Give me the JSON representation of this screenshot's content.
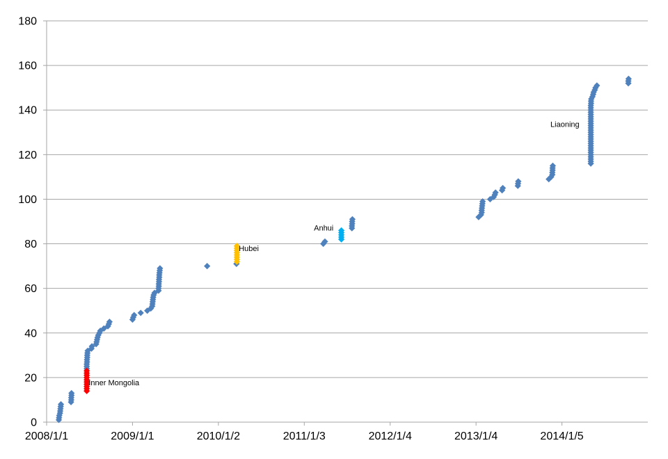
{
  "chart_data": {
    "type": "scatter",
    "title": "",
    "xlabel": "",
    "ylabel": "",
    "x_ticks": [
      "2008/1/1",
      "2009/1/1",
      "2010/1/2",
      "2011/1/3",
      "2012/1/4",
      "2013/1/4",
      "2014/1/5"
    ],
    "y_ticks": [
      0,
      20,
      40,
      60,
      80,
      100,
      120,
      140,
      160,
      180
    ],
    "xlim": [
      "2008-01-01",
      "2015-01-06"
    ],
    "ylim": [
      0,
      180
    ],
    "grid": "horizontal",
    "legend": "none",
    "colors": {
      "default": "#4F81BD",
      "inner_mongolia": "#FF0000",
      "hubei": "#FFC000",
      "anhui": "#00B0F0",
      "gridline": "#A6A6A6"
    },
    "series": [
      {
        "color_key": "default",
        "points": [
          [
            "2008-02-22",
            1
          ],
          [
            "2008-02-23",
            2
          ],
          [
            "2008-02-24",
            3
          ],
          [
            "2008-02-27",
            4
          ],
          [
            "2008-02-28",
            5
          ],
          [
            "2008-02-29",
            6
          ],
          [
            "2008-03-01",
            7
          ],
          [
            "2008-03-02",
            8
          ],
          [
            "2008-04-14",
            9
          ],
          [
            "2008-04-15",
            10
          ],
          [
            "2008-04-15",
            11
          ],
          [
            "2008-04-16",
            12
          ],
          [
            "2008-04-16",
            13
          ],
          [
            "2008-06-20",
            24
          ],
          [
            "2008-06-20",
            25
          ],
          [
            "2008-06-20",
            26
          ],
          [
            "2008-06-21",
            27
          ],
          [
            "2008-06-21",
            28
          ],
          [
            "2008-06-22",
            29
          ],
          [
            "2008-06-22",
            30
          ],
          [
            "2008-06-23",
            31
          ],
          [
            "2008-06-24",
            32
          ],
          [
            "2008-07-10",
            33
          ],
          [
            "2008-07-12",
            34
          ],
          [
            "2008-07-30",
            35
          ],
          [
            "2008-08-01",
            36
          ],
          [
            "2008-08-03",
            37
          ],
          [
            "2008-08-05",
            38
          ],
          [
            "2008-08-08",
            39
          ],
          [
            "2008-08-13",
            40
          ],
          [
            "2008-08-17",
            41
          ],
          [
            "2008-09-01",
            42
          ],
          [
            "2008-09-18",
            43
          ],
          [
            "2008-09-22",
            44
          ],
          [
            "2008-09-25",
            45
          ],
          [
            "2009-01-01",
            46
          ],
          [
            "2009-01-04",
            47
          ],
          [
            "2009-01-08",
            48
          ],
          [
            "2009-02-05",
            49
          ],
          [
            "2009-03-05",
            50
          ],
          [
            "2009-03-20",
            51
          ],
          [
            "2009-03-26",
            52
          ],
          [
            "2009-03-27",
            53
          ],
          [
            "2009-03-28",
            54
          ],
          [
            "2009-03-29",
            55
          ],
          [
            "2009-03-30",
            56
          ],
          [
            "2009-04-01",
            57
          ],
          [
            "2009-04-05",
            58
          ],
          [
            "2009-04-22",
            59
          ],
          [
            "2009-04-22",
            60
          ],
          [
            "2009-04-23",
            61
          ],
          [
            "2009-04-23",
            62
          ],
          [
            "2009-04-24",
            63
          ],
          [
            "2009-04-24",
            64
          ],
          [
            "2009-04-25",
            65
          ],
          [
            "2009-04-25",
            66
          ],
          [
            "2009-04-26",
            67
          ],
          [
            "2009-04-27",
            68
          ],
          [
            "2009-04-28",
            69
          ],
          [
            "2009-11-15",
            70
          ],
          [
            "2010-03-20",
            71
          ],
          [
            "2011-03-25",
            80
          ],
          [
            "2011-04-01",
            81
          ],
          [
            "2011-07-25",
            87
          ],
          [
            "2011-07-25",
            88
          ],
          [
            "2011-07-26",
            89
          ],
          [
            "2011-07-26",
            90
          ],
          [
            "2011-07-27",
            91
          ],
          [
            "2013-01-15",
            92
          ],
          [
            "2013-01-25",
            93
          ],
          [
            "2013-01-28",
            94
          ],
          [
            "2013-01-28",
            95
          ],
          [
            "2013-01-29",
            96
          ],
          [
            "2013-01-30",
            97
          ],
          [
            "2013-01-31",
            98
          ],
          [
            "2013-02-01",
            99
          ],
          [
            "2013-03-05",
            100
          ],
          [
            "2013-03-20",
            101
          ],
          [
            "2013-03-25",
            102
          ],
          [
            "2013-03-28",
            103
          ],
          [
            "2013-04-25",
            104
          ],
          [
            "2013-04-28",
            105
          ],
          [
            "2013-07-01",
            106
          ],
          [
            "2013-07-02",
            107
          ],
          [
            "2013-07-03",
            108
          ],
          [
            "2013-11-10",
            109
          ],
          [
            "2013-11-20",
            110
          ],
          [
            "2013-11-25",
            111
          ],
          [
            "2013-11-25",
            112
          ],
          [
            "2013-11-26",
            113
          ],
          [
            "2013-11-26",
            114
          ],
          [
            "2013-11-27",
            115
          ],
          [
            "2014-05-08",
            116
          ],
          [
            "2014-05-08",
            117
          ],
          [
            "2014-05-08",
            118
          ],
          [
            "2014-05-08",
            119
          ],
          [
            "2014-05-08",
            120
          ],
          [
            "2014-05-08",
            121
          ],
          [
            "2014-05-08",
            122
          ],
          [
            "2014-05-08",
            123
          ],
          [
            "2014-05-08",
            124
          ],
          [
            "2014-05-08",
            125
          ],
          [
            "2014-05-08",
            126
          ],
          [
            "2014-05-08",
            127
          ],
          [
            "2014-05-08",
            128
          ],
          [
            "2014-05-08",
            129
          ],
          [
            "2014-05-08",
            130
          ],
          [
            "2014-05-08",
            131
          ],
          [
            "2014-05-08",
            132
          ],
          [
            "2014-05-08",
            133
          ],
          [
            "2014-05-08",
            134
          ],
          [
            "2014-05-08",
            135
          ],
          [
            "2014-05-08",
            136
          ],
          [
            "2014-05-08",
            137
          ],
          [
            "2014-05-08",
            138
          ],
          [
            "2014-05-08",
            139
          ],
          [
            "2014-05-08",
            140
          ],
          [
            "2014-05-08",
            141
          ],
          [
            "2014-05-08",
            142
          ],
          [
            "2014-05-09",
            143
          ],
          [
            "2014-05-09",
            144
          ],
          [
            "2014-05-10",
            145
          ],
          [
            "2014-05-15",
            146
          ],
          [
            "2014-05-18",
            147
          ],
          [
            "2014-05-20",
            148
          ],
          [
            "2014-05-25",
            149
          ],
          [
            "2014-05-28",
            150
          ],
          [
            "2014-06-03",
            151
          ],
          [
            "2014-10-15",
            152
          ],
          [
            "2014-10-15",
            153
          ],
          [
            "2014-10-16",
            154
          ]
        ]
      },
      {
        "color_key": "inner_mongolia",
        "points": [
          [
            "2008-06-20",
            14
          ],
          [
            "2008-06-20",
            15
          ],
          [
            "2008-06-20",
            16
          ],
          [
            "2008-06-20",
            17
          ],
          [
            "2008-06-20",
            18
          ],
          [
            "2008-06-20",
            19
          ],
          [
            "2008-06-20",
            20
          ],
          [
            "2008-06-20",
            21
          ],
          [
            "2008-06-20",
            22
          ],
          [
            "2008-06-20",
            23
          ]
        ]
      },
      {
        "color_key": "hubei",
        "points": [
          [
            "2010-03-22",
            72
          ],
          [
            "2010-03-22",
            73
          ],
          [
            "2010-03-22",
            74
          ],
          [
            "2010-03-22",
            75
          ],
          [
            "2010-03-22",
            76
          ],
          [
            "2010-03-22",
            77
          ],
          [
            "2010-03-22",
            78
          ],
          [
            "2010-03-22",
            79
          ]
        ]
      },
      {
        "color_key": "anhui",
        "points": [
          [
            "2011-06-10",
            82
          ],
          [
            "2011-06-10",
            83
          ],
          [
            "2011-06-10",
            84
          ],
          [
            "2011-06-10",
            85
          ],
          [
            "2011-06-10",
            86
          ]
        ]
      }
    ],
    "annotations": [
      {
        "text": "Inner Mongolia",
        "date": "2008-06-28",
        "y": 16.5
      },
      {
        "text": "Hubei",
        "date": "2010-03-30",
        "y": 76.7
      },
      {
        "text": "Anhui",
        "date": "2011-02-13",
        "y": 86
      },
      {
        "text": "Liaoning",
        "date": "2013-11-17",
        "y": 132.5
      }
    ]
  }
}
